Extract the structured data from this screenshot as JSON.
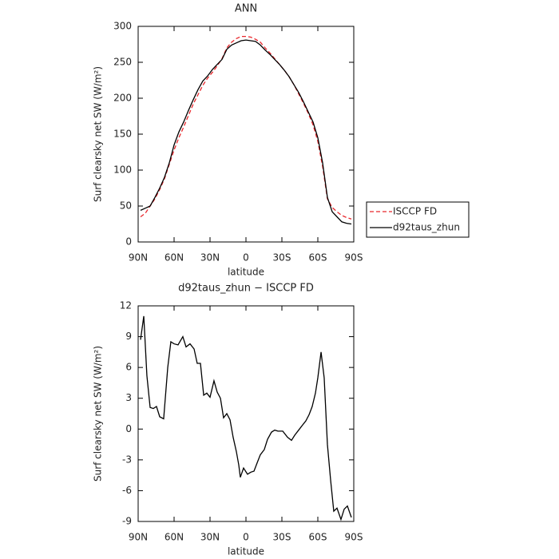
{
  "chart_data": [
    {
      "type": "line",
      "title": "ANN",
      "xlabel": "latitude",
      "ylabel": "Surf clearsky net SW (W/m²)",
      "xlim": [
        90,
        -90
      ],
      "xticks": [
        {
          "value": 90,
          "label": "90N"
        },
        {
          "value": 60,
          "label": "60N"
        },
        {
          "value": 30,
          "label": "30N"
        },
        0,
        {
          "value": -30,
          "label": "30S"
        },
        {
          "value": -60,
          "label": "60S"
        },
        {
          "value": -90,
          "label": "90S"
        }
      ],
      "ylim": [
        0,
        300
      ],
      "yticks": [
        0,
        50,
        100,
        150,
        200,
        250,
        300
      ],
      "legend": "right",
      "x": [
        88,
        84,
        80,
        76,
        72,
        68,
        64,
        60,
        56,
        52,
        48,
        44,
        40,
        36,
        32,
        28,
        24,
        20,
        16,
        12,
        8,
        4,
        0,
        -4,
        -8,
        -12,
        -16,
        -20,
        -24,
        -28,
        -32,
        -36,
        -40,
        -44,
        -48,
        -52,
        -56,
        -60,
        -64,
        -68,
        -72,
        -76,
        -80,
        -84,
        -88
      ],
      "series": [
        {
          "name": "ISCCP FD",
          "color": "#e8262b",
          "dash": "dashed",
          "values": [
            35,
            40,
            50,
            60,
            73,
            88,
            108,
            128,
            145,
            160,
            176,
            192,
            205,
            218,
            228,
            236,
            245,
            255,
            270,
            278,
            283,
            286,
            286,
            285,
            282,
            278,
            270,
            263,
            255,
            247,
            239,
            230,
            219,
            206,
            193,
            179,
            163,
            140,
            105,
            60,
            48,
            42,
            37,
            34,
            32
          ]
        },
        {
          "name": "d92taus_zhun",
          "color": "#000000",
          "dash": "solid",
          "values": [
            44,
            47,
            50,
            62,
            75,
            90,
            110,
            135,
            153,
            167,
            183,
            198,
            212,
            224,
            231,
            240,
            247,
            254,
            268,
            274,
            277,
            280,
            281,
            280,
            279,
            274,
            267,
            261,
            254,
            247,
            239,
            230,
            219,
            208,
            195,
            181,
            167,
            145,
            110,
            62,
            42,
            35,
            28,
            26,
            25
          ]
        }
      ]
    },
    {
      "type": "line",
      "title": "d92taus_zhun − ISCCP FD",
      "xlabel": "latitude",
      "ylabel": "Surf clearsky net SW (W/m²)",
      "xlim": [
        90,
        -90
      ],
      "xticks": [
        {
          "value": 90,
          "label": "90N"
        },
        {
          "value": 60,
          "label": "60N"
        },
        {
          "value": 30,
          "label": "30N"
        },
        0,
        {
          "value": -30,
          "label": "30S"
        },
        {
          "value": -60,
          "label": "60S"
        },
        {
          "value": -90,
          "label": "90S"
        }
      ],
      "ylim": [
        -9,
        12
      ],
      "yticks": [
        -9,
        -6,
        -3,
        0,
        3,
        6,
        9,
        12
      ],
      "x": [
        88,
        85.3,
        82.7,
        80,
        77.3,
        74.7,
        72,
        68.7,
        65.3,
        62.7,
        60,
        56.7,
        52.7,
        50,
        46.7,
        43.3,
        40.7,
        38,
        35.3,
        32.7,
        30,
        26.7,
        24,
        21.3,
        18.7,
        16,
        13.3,
        10.7,
        8,
        6,
        4.7,
        2,
        -1.3,
        -4,
        -6.7,
        -9.3,
        -12,
        -15.3,
        -18,
        -21.3,
        -24,
        -26.7,
        -30.7,
        -34.7,
        -38,
        -40.7,
        -44,
        -47.3,
        -50,
        -52.7,
        -55.3,
        -58,
        -60,
        -62.7,
        -65.3,
        -68,
        -70.7,
        -73.3,
        -76,
        -79.3,
        -82,
        -84.7,
        -88
      ],
      "series": [
        {
          "color": "#000000",
          "dash": "solid",
          "values": [
            8.7,
            11,
            5.2,
            2.1,
            2.0,
            2.2,
            1.2,
            1.0,
            6.0,
            8.5,
            8.3,
            8.2,
            9.0,
            8.0,
            8.3,
            7.8,
            6.4,
            6.4,
            3.3,
            3.5,
            3.1,
            4.7,
            3.6,
            3.0,
            1.1,
            1.5,
            0.9,
            -0.8,
            -2.2,
            -3.5,
            -4.7,
            -3.8,
            -4.4,
            -4.2,
            -4.1,
            -3.3,
            -2.5,
            -2.0,
            -1.0,
            -0.3,
            -0.1,
            -0.2,
            -0.2,
            -0.8,
            -1.1,
            -0.6,
            -0.1,
            0.4,
            0.8,
            1.4,
            2.2,
            3.5,
            5.0,
            7.5,
            5.0,
            -1.5,
            -5.0,
            -8.0,
            -7.7,
            -8.8,
            -7.8,
            -7.5,
            -8.6
          ]
        }
      ]
    }
  ]
}
